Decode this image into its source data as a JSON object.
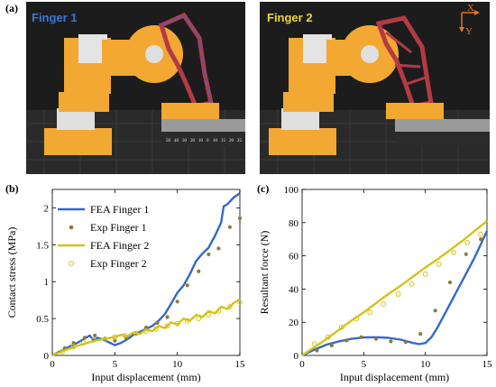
{
  "figure": {
    "panel_a_label": "(a)",
    "panel_b_label": "(b)",
    "panel_c_label": "(c)",
    "photo1_title": "Finger 1",
    "photo2_title": "Finger 2",
    "axis_x_label": "X",
    "axis_y_label": "Y",
    "ruler_labels": [
      "50",
      "40",
      "30",
      "20",
      "10",
      "0",
      "10",
      "15",
      "20",
      "25"
    ],
    "colors": {
      "finger1": "#3569c8",
      "finger2": "#d4c21a",
      "exp1_marker": "#8c7a3a",
      "photo_bg": "#1c1c1c",
      "robot_yellow": "#f2a833",
      "gripper_red": "#b43a45",
      "title1": "#3a78d6",
      "title2": "#ead43a",
      "axis_arrow": "#e0732a"
    }
  },
  "chart_data": [
    {
      "type": "line",
      "panel": "(b)",
      "xlabel": "Input displacement (mm)",
      "ylabel": "Contact stress (MPa)",
      "xlim": [
        0,
        15
      ],
      "ylim": [
        0,
        2.25
      ],
      "xticks": [
        "0",
        "5",
        "10",
        "15"
      ],
      "yticks": [
        "0",
        "0.5",
        "1",
        "1.5",
        "2"
      ],
      "legend_position": "top-left",
      "legend": [
        "FEA Finger 1",
        "Exp Finger 1",
        "FEA Finger 2",
        "Exp Finger 2"
      ],
      "series": [
        {
          "name": "FEA Finger 1",
          "style": "line",
          "color": "#3569c8",
          "x": [
            0,
            1,
            2,
            2.5,
            3,
            3.3,
            3.6,
            4,
            4.5,
            5,
            5.5,
            6,
            6.5,
            7,
            7.5,
            8,
            8.5,
            9,
            9.5,
            10,
            10.5,
            11,
            11.5,
            12,
            12.5,
            13,
            13.5,
            13.7,
            14,
            14.5,
            15
          ],
          "y": [
            0,
            0.09,
            0.17,
            0.22,
            0.27,
            0.2,
            0.24,
            0.22,
            0.18,
            0.14,
            0.17,
            0.22,
            0.28,
            0.32,
            0.36,
            0.4,
            0.47,
            0.56,
            0.7,
            0.85,
            0.95,
            1.1,
            1.28,
            1.38,
            1.46,
            1.62,
            1.8,
            2.02,
            2.05,
            2.14,
            2.2
          ]
        },
        {
          "name": "Exp Finger 1",
          "style": "marker-filled",
          "color": "#8c7a3a",
          "x": [
            1.0,
            1.7,
            2.6,
            3.4,
            4.2,
            5.0,
            5.9,
            6.7,
            7.5,
            8.4,
            9.2,
            10.0,
            10.8,
            11.7,
            12.5,
            13.3,
            14.2,
            15.0
          ],
          "y": [
            0.1,
            0.17,
            0.24,
            0.27,
            0.23,
            0.2,
            0.24,
            0.29,
            0.38,
            0.44,
            0.52,
            0.73,
            0.95,
            1.14,
            1.37,
            1.45,
            1.74,
            1.86
          ]
        },
        {
          "name": "FEA Finger 2",
          "style": "line",
          "color": "#d4c21a",
          "x": [
            0,
            1,
            2,
            3,
            4,
            5,
            5.5,
            6,
            6.5,
            7,
            7.5,
            8,
            8.5,
            9,
            9.5,
            10,
            10.5,
            11,
            11.5,
            12,
            12.5,
            13,
            13.5,
            14,
            14.5,
            15
          ],
          "y": [
            0,
            0.07,
            0.13,
            0.18,
            0.22,
            0.25,
            0.28,
            0.26,
            0.31,
            0.29,
            0.35,
            0.33,
            0.4,
            0.37,
            0.45,
            0.42,
            0.5,
            0.47,
            0.55,
            0.52,
            0.6,
            0.57,
            0.66,
            0.63,
            0.71,
            0.76
          ]
        },
        {
          "name": "Exp Finger 2",
          "style": "marker-open",
          "color": "#d4c21a",
          "x": [
            0.8,
            1.7,
            2.5,
            3.3,
            4.2,
            5.0,
            5.8,
            6.7,
            7.5,
            8.3,
            9.2,
            10.0,
            10.8,
            11.7,
            12.5,
            13.3,
            14.2,
            15.0
          ],
          "y": [
            0.05,
            0.12,
            0.17,
            0.21,
            0.22,
            0.25,
            0.27,
            0.3,
            0.33,
            0.36,
            0.4,
            0.43,
            0.47,
            0.5,
            0.55,
            0.6,
            0.66,
            0.72
          ]
        }
      ]
    },
    {
      "type": "line",
      "panel": "(c)",
      "xlabel": "Input displacement (mm)",
      "ylabel": "Resultant force (N)",
      "xlim": [
        0,
        15
      ],
      "ylim": [
        0,
        100
      ],
      "xticks": [
        "0",
        "5",
        "10",
        "15"
      ],
      "yticks": [
        "0",
        "20",
        "40",
        "60",
        "80",
        "100"
      ],
      "series": [
        {
          "name": "Finger 1 FEA",
          "style": "line",
          "color": "#3569c8",
          "x": [
            0,
            1,
            2,
            3,
            4,
            5,
            6,
            7,
            8,
            9,
            9.5,
            10,
            10.5,
            11,
            11.5,
            12,
            12.5,
            13,
            13.5,
            14,
            14.5,
            15
          ],
          "y": [
            0,
            3.5,
            6.5,
            8.5,
            10,
            10.8,
            11,
            10.6,
            9.5,
            7.5,
            6.8,
            7.5,
            11,
            17,
            24,
            31,
            38,
            45,
            52,
            59,
            67,
            75
          ]
        },
        {
          "name": "Finger 1 Exp",
          "style": "marker-filled",
          "color": "#8c7a3a",
          "x": [
            1.2,
            2.4,
            3.6,
            4.8,
            6.0,
            7.2,
            8.4,
            9.6,
            10.8,
            12.0,
            13.3,
            14.5
          ],
          "y": [
            3,
            6,
            9,
            11,
            10,
            8.5,
            8,
            13,
            27,
            44,
            61,
            70
          ]
        },
        {
          "name": "Finger 2 FEA",
          "style": "line",
          "color": "#d4c21a",
          "x": [
            0,
            1,
            2,
            3,
            4,
            5,
            6,
            7,
            8,
            9,
            10,
            11,
            12,
            13,
            14,
            15
          ],
          "y": [
            0,
            5,
            10,
            15.5,
            21,
            26,
            31.5,
            37,
            42,
            47.5,
            53,
            58,
            63.5,
            69,
            75,
            81
          ]
        },
        {
          "name": "Finger 2 Exp",
          "style": "marker-open",
          "color": "#d4c21a",
          "x": [
            1.0,
            2.1,
            3.2,
            4.4,
            5.5,
            6.6,
            7.8,
            8.9,
            10.0,
            11.1,
            12.3,
            13.4,
            14.5
          ],
          "y": [
            7,
            11,
            17,
            22,
            26,
            31,
            37,
            43,
            49,
            55,
            62,
            68,
            73
          ]
        }
      ]
    }
  ]
}
